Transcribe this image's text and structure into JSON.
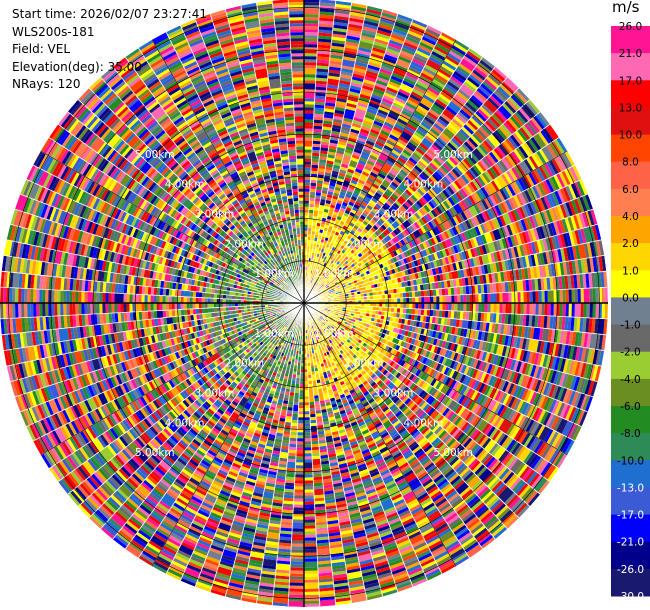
{
  "info": {
    "start_time": "Start time: 2026/02/07 23:27:41",
    "instrument": "WLS200s-181",
    "field": "Field: VEL",
    "elevation": "Elevation(deg): 35.00",
    "nrays": "NRays: 120"
  },
  "chart_data": {
    "type": "heatmap",
    "projection": "polar-ppi",
    "field": "VEL",
    "units": "m/s",
    "nrays": 120,
    "ring_labels": [
      "1.00km",
      "2.00km",
      "3.00km",
      "4.00km",
      "5.00km"
    ],
    "ring_label_angles_deg": [
      45,
      135,
      225,
      315
    ],
    "max_range_km": 7.2,
    "colorbar": {
      "title": "m/s",
      "ticks": [
        "26.0",
        "21.0",
        "17.0",
        "13.0",
        "10.0",
        "8.0",
        "6.0",
        "4.0",
        "2.0",
        "1.0",
        "0.0",
        "-1.0",
        "-2.0",
        "-4.0",
        "-6.0",
        "-8.0",
        "-10.0",
        "-13.0",
        "-17.0",
        "-21.0",
        "-26.0",
        "-30.0"
      ],
      "colors": [
        "#ff1493",
        "#ff69b4",
        "#ff0000",
        "#e01010",
        "#ff4500",
        "#ff6347",
        "#ff7f50",
        "#ffa500",
        "#ffd700",
        "#ffff00",
        "#708090",
        "#696969",
        "#9acd32",
        "#6b8e23",
        "#228b22",
        "#2e8b57",
        "#1e6fd0",
        "#3b5bd5",
        "#0000ff",
        "#00008b",
        "#191970"
      ]
    }
  }
}
